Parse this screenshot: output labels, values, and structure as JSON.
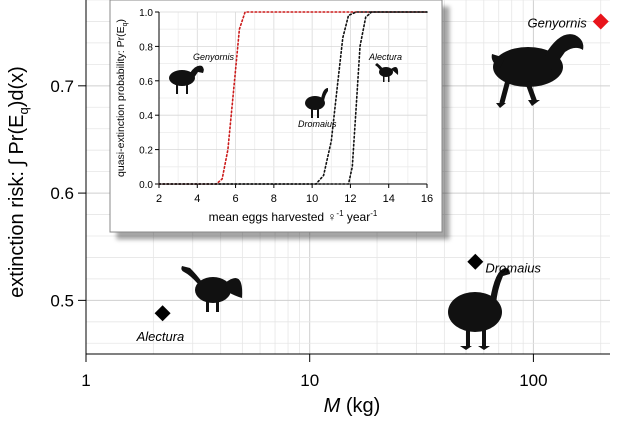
{
  "chart_data": [
    {
      "type": "scatter",
      "xlabel_var": "M",
      "xlabel_unit": "(kg)",
      "ylabel": "extinction risk: ∫ Pr(E",
      "ylabel_sub": "q",
      "ylabel_end": ")d(x)",
      "xscale": "log",
      "xlim": [
        1,
        220
      ],
      "ylim": [
        0.45,
        0.78
      ],
      "x_ticks": [
        1,
        10,
        100
      ],
      "x_tick_labels": [
        "1",
        "10",
        "100"
      ],
      "y_ticks": [
        0.5,
        0.6,
        0.7
      ],
      "y_tick_labels": [
        "0.5",
        "0.6",
        "0.7"
      ],
      "grid": true,
      "points": [
        {
          "label": "Alectura",
          "x": 2.2,
          "y": 0.488,
          "color": "#000000"
        },
        {
          "label": "Dromaius",
          "x": 55,
          "y": 0.536,
          "color": "#000000"
        },
        {
          "label": "Genyornis",
          "x": 200,
          "y": 0.76,
          "color": "#e8141b"
        }
      ]
    },
    {
      "type": "line",
      "xlabel_main": "mean eggs harvested ♀",
      "xlabel_sup": "-1",
      "xlabel_mid": " year",
      "xlabel_sup2": "-1",
      "ylabel": "quasi-extinction probability: Pr(E",
      "ylabel_sub": "q",
      "ylabel_end": ")",
      "xlim": [
        2,
        16
      ],
      "ylim": [
        0,
        1
      ],
      "x_ticks": [
        2,
        4,
        6,
        8,
        10,
        12,
        14,
        16
      ],
      "y_ticks": [
        0.0,
        0.2,
        0.4,
        0.6,
        0.8,
        1.0
      ],
      "y_tick_labels": [
        "0.0",
        "0.2",
        "0.4",
        "0.6",
        "0.8",
        "1.0"
      ],
      "series": [
        {
          "name": "Genyornis",
          "color": "#cc1a1a",
          "x": [
            2,
            5.0,
            5.3,
            5.6,
            5.9,
            6.2,
            6.5,
            7,
            16
          ],
          "y": [
            0,
            0,
            0.03,
            0.2,
            0.55,
            0.9,
            1.0,
            1.0,
            1.0
          ]
        },
        {
          "name": "Dromaius",
          "color": "#111111",
          "x": [
            2,
            10.2,
            10.6,
            11.0,
            11.3,
            11.6,
            11.9,
            12.3,
            16
          ],
          "y": [
            0,
            0,
            0.05,
            0.25,
            0.55,
            0.85,
            0.98,
            1.0,
            1.0
          ]
        },
        {
          "name": "Alectura",
          "color": "#111111",
          "x": [
            2,
            11.9,
            12.1,
            12.3,
            12.5,
            12.8,
            13.1,
            16
          ],
          "y": [
            0,
            0,
            0.1,
            0.45,
            0.8,
            0.97,
            1.0,
            1.0
          ]
        }
      ]
    }
  ]
}
